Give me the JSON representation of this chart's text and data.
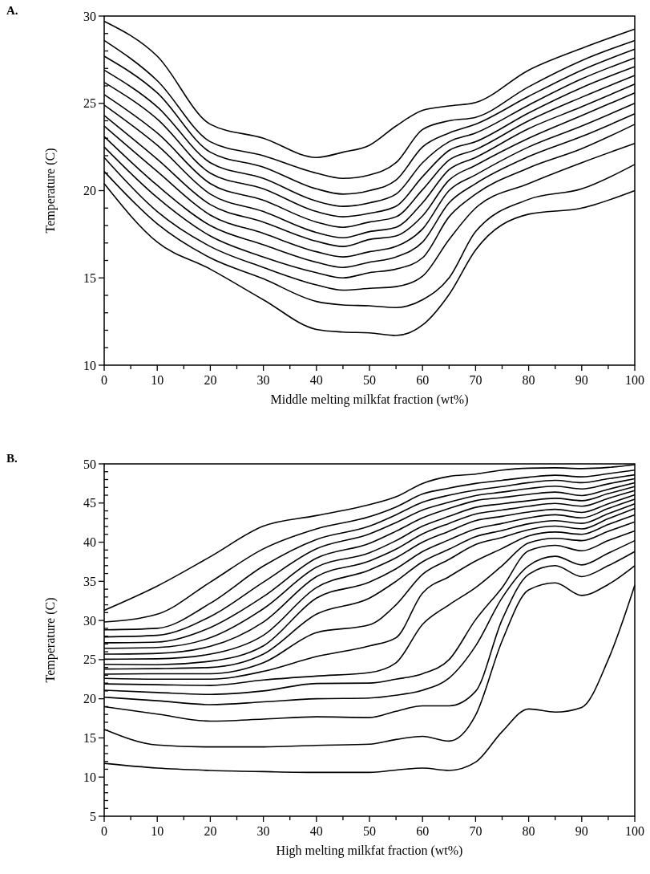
{
  "chart_data": [
    {
      "type": "line",
      "title": "A.",
      "xlabel": "Middle melting milkfat fraction (wt%)",
      "ylabel": "Temperature (C)",
      "xlim": [
        0,
        100
      ],
      "ylim": [
        10,
        30
      ],
      "xticks": [
        0,
        {
          "value": 5,
          "label": null
        },
        10,
        {
          "value": 15,
          "label": null
        },
        20,
        {
          "value": 25,
          "label": null
        },
        30,
        {
          "value": 35,
          "label": null
        },
        40,
        {
          "value": 45,
          "label": null
        },
        50,
        {
          "value": 55,
          "label": null
        },
        60,
        {
          "value": 65,
          "label": null
        },
        70,
        {
          "value": 75,
          "label": null
        },
        80,
        {
          "value": 85,
          "label": null
        },
        90,
        {
          "value": 95,
          "label": null
        },
        100
      ],
      "yticks": [
        10,
        {
          "value": 11,
          "label": null
        },
        {
          "value": 12,
          "label": null
        },
        {
          "value": 13,
          "label": null
        },
        {
          "value": 14,
          "label": null
        },
        15,
        {
          "value": 16,
          "label": null
        },
        {
          "value": 17,
          "label": null
        },
        {
          "value": 18,
          "label": null
        },
        {
          "value": 19,
          "label": null
        },
        20,
        {
          "value": 21,
          "label": null
        },
        {
          "value": 22,
          "label": null
        },
        {
          "value": 23,
          "label": null
        },
        {
          "value": 24,
          "label": null
        },
        25,
        {
          "value": 26,
          "label": null
        },
        {
          "value": 27,
          "label": null
        },
        {
          "value": 28,
          "label": null
        },
        {
          "value": 29,
          "label": null
        },
        30
      ],
      "x": [
        0,
        10,
        20,
        30,
        40,
        45,
        50,
        55,
        60,
        65,
        70,
        80,
        90,
        100
      ],
      "series": [
        {
          "color": "#000000",
          "values": [
            29.7,
            27.7,
            23.8,
            23.0,
            21.9,
            22.2,
            22.6,
            23.7,
            24.6,
            24.85,
            25.05,
            26.9,
            28.15,
            29.25
          ]
        },
        {
          "color": "#000000",
          "values": [
            28.6,
            26.3,
            22.8,
            22.0,
            21.0,
            20.7,
            20.9,
            21.6,
            23.5,
            24.0,
            24.2,
            25.95,
            27.45,
            28.6
          ]
        },
        {
          "color": "#000000",
          "values": [
            27.7,
            25.6,
            22.2,
            21.35,
            20.1,
            19.8,
            20.0,
            20.6,
            22.5,
            23.3,
            23.8,
            25.4,
            26.9,
            28.1
          ]
        },
        {
          "color": "#000000",
          "values": [
            26.9,
            24.8,
            21.6,
            20.7,
            19.4,
            19.1,
            19.3,
            19.8,
            21.6,
            22.8,
            23.3,
            24.9,
            26.4,
            27.6
          ]
        },
        {
          "color": "#000000",
          "values": [
            26.2,
            24.1,
            21.0,
            20.1,
            18.8,
            18.5,
            18.7,
            19.1,
            20.8,
            22.3,
            22.8,
            24.45,
            25.9,
            27.1
          ]
        },
        {
          "color": "#000000",
          "values": [
            25.5,
            23.3,
            20.4,
            19.45,
            18.2,
            17.9,
            18.2,
            18.5,
            20.05,
            21.75,
            22.35,
            24.0,
            25.35,
            26.6
          ]
        },
        {
          "color": "#000000",
          "values": [
            24.9,
            22.6,
            19.8,
            18.8,
            17.6,
            17.3,
            17.65,
            17.9,
            19.3,
            21.2,
            21.9,
            23.55,
            24.8,
            26.1
          ]
        },
        {
          "color": "#000000",
          "values": [
            24.3,
            21.8,
            19.2,
            18.2,
            17.1,
            16.8,
            17.2,
            17.4,
            18.55,
            20.6,
            21.45,
            23.0,
            24.3,
            25.6
          ]
        },
        {
          "color": "#000000",
          "values": [
            23.7,
            21.1,
            18.6,
            17.55,
            16.5,
            16.2,
            16.5,
            16.8,
            17.8,
            20.0,
            20.9,
            22.5,
            23.7,
            25.0
          ]
        },
        {
          "color": "#000000",
          "values": [
            23.1,
            20.3,
            18.0,
            16.9,
            15.9,
            15.6,
            15.9,
            16.2,
            17.05,
            19.3,
            20.4,
            21.95,
            23.1,
            24.4
          ]
        },
        {
          "color": "#000000",
          "values": [
            22.5,
            19.6,
            17.4,
            16.2,
            15.3,
            15.0,
            15.3,
            15.5,
            16.15,
            18.5,
            19.8,
            21.3,
            22.4,
            23.8
          ]
        },
        {
          "color": "#000000",
          "values": [
            21.9,
            18.8,
            16.8,
            15.6,
            14.6,
            14.3,
            14.4,
            14.5,
            15.1,
            17.2,
            19.0,
            20.4,
            21.6,
            22.7
          ]
        },
        {
          "color": "#000000",
          "values": [
            21.1,
            18.1,
            16.15,
            14.95,
            13.65,
            13.45,
            13.4,
            13.3,
            13.75,
            15.0,
            17.65,
            19.5,
            20.1,
            21.5
          ]
        },
        {
          "color": "#000000",
          "values": [
            20.4,
            17.05,
            15.5,
            13.75,
            12.05,
            11.9,
            11.85,
            11.7,
            12.3,
            14.05,
            16.6,
            18.65,
            19.0,
            20.0
          ]
        }
      ]
    },
    {
      "type": "line",
      "title": "B.",
      "xlabel": "High melting milkfat fraction (wt%)",
      "ylabel": "Temperature (C)",
      "xlim": [
        0,
        100
      ],
      "ylim": [
        5,
        50
      ],
      "xticks": [
        0,
        {
          "value": 5,
          "label": null
        },
        10,
        {
          "value": 15,
          "label": null
        },
        20,
        {
          "value": 25,
          "label": null
        },
        30,
        {
          "value": 35,
          "label": null
        },
        40,
        {
          "value": 45,
          "label": null
        },
        50,
        {
          "value": 55,
          "label": null
        },
        60,
        {
          "value": 65,
          "label": null
        },
        70,
        {
          "value": 75,
          "label": null
        },
        80,
        {
          "value": 85,
          "label": null
        },
        90,
        {
          "value": 95,
          "label": null
        },
        100
      ],
      "yticks": [
        5,
        {
          "value": 6,
          "label": null
        },
        {
          "value": 7,
          "label": null
        },
        {
          "value": 8,
          "label": null
        },
        {
          "value": 9,
          "label": null
        },
        10,
        {
          "value": 11,
          "label": null
        },
        {
          "value": 12,
          "label": null
        },
        {
          "value": 13,
          "label": null
        },
        {
          "value": 14,
          "label": null
        },
        15,
        {
          "value": 16,
          "label": null
        },
        {
          "value": 17,
          "label": null
        },
        {
          "value": 18,
          "label": null
        },
        {
          "value": 19,
          "label": null
        },
        20,
        {
          "value": 21,
          "label": null
        },
        {
          "value": 22,
          "label": null
        },
        {
          "value": 23,
          "label": null
        },
        {
          "value": 24,
          "label": null
        },
        25,
        {
          "value": 26,
          "label": null
        },
        {
          "value": 27,
          "label": null
        },
        {
          "value": 28,
          "label": null
        },
        {
          "value": 29,
          "label": null
        },
        30,
        {
          "value": 31,
          "label": null
        },
        {
          "value": 32,
          "label": null
        },
        {
          "value": 33,
          "label": null
        },
        {
          "value": 34,
          "label": null
        },
        35,
        {
          "value": 36,
          "label": null
        },
        {
          "value": 37,
          "label": null
        },
        {
          "value": 38,
          "label": null
        },
        {
          "value": 39,
          "label": null
        },
        40,
        {
          "value": 41,
          "label": null
        },
        {
          "value": 42,
          "label": null
        },
        {
          "value": 43,
          "label": null
        },
        {
          "value": 44,
          "label": null
        },
        45,
        {
          "value": 46,
          "label": null
        },
        {
          "value": 47,
          "label": null
        },
        {
          "value": 48,
          "label": null
        },
        {
          "value": 49,
          "label": null
        },
        50
      ],
      "x": [
        0,
        10,
        20,
        30,
        40,
        50,
        55,
        60,
        65,
        70,
        75,
        80,
        85,
        90,
        95,
        100
      ],
      "series": [
        {
          "color": "#000000",
          "values": [
            31.3,
            34.4,
            38.15,
            42.05,
            43.4,
            44.8,
            45.8,
            47.5,
            48.4,
            48.7,
            49.2,
            49.45,
            49.5,
            49.4,
            49.55,
            49.9
          ]
        },
        {
          "color": "#000000",
          "values": [
            29.8,
            30.8,
            34.9,
            39.15,
            41.7,
            43.25,
            44.5,
            46.15,
            46.9,
            47.5,
            47.9,
            48.3,
            48.55,
            48.35,
            48.75,
            49.2
          ]
        },
        {
          "color": "#000000",
          "values": [
            28.8,
            29.0,
            32.2,
            36.95,
            40.35,
            42.05,
            43.5,
            45.1,
            46.0,
            46.65,
            47.1,
            47.6,
            47.9,
            47.6,
            48.1,
            48.6
          ]
        },
        {
          "color": "#000000",
          "values": [
            27.9,
            28.1,
            30.5,
            34.9,
            39.15,
            41.05,
            42.5,
            44.1,
            45.1,
            45.95,
            46.4,
            46.85,
            47.15,
            46.8,
            47.45,
            48.1
          ]
        },
        {
          "color": "#000000",
          "values": [
            27.15,
            27.25,
            29.1,
            33.05,
            37.95,
            39.85,
            41.4,
            43.1,
            44.3,
            45.3,
            45.7,
            46.1,
            46.4,
            45.95,
            46.75,
            47.6
          ]
        },
        {
          "color": "#000000",
          "values": [
            26.45,
            26.55,
            27.8,
            31.5,
            36.8,
            38.65,
            40.2,
            42.05,
            43.3,
            44.45,
            44.9,
            45.3,
            45.6,
            45.3,
            46.2,
            47.1
          ]
        },
        {
          "color": "#000000",
          "values": [
            25.7,
            25.8,
            26.7,
            29.8,
            35.6,
            37.6,
            39.1,
            41.05,
            42.4,
            43.6,
            44.1,
            44.6,
            44.95,
            44.6,
            45.6,
            46.6
          ]
        },
        {
          "color": "#000000",
          "values": [
            25.05,
            25.1,
            25.7,
            28.1,
            34.2,
            36.45,
            38.0,
            40.0,
            41.4,
            42.75,
            43.3,
            43.85,
            44.2,
            43.8,
            44.9,
            46.05
          ]
        },
        {
          "color": "#000000",
          "values": [
            24.4,
            24.35,
            24.8,
            26.75,
            32.85,
            34.9,
            36.6,
            38.8,
            40.3,
            41.7,
            42.4,
            43.1,
            43.5,
            43.1,
            44.3,
            45.5
          ]
        },
        {
          "color": "#000000",
          "values": [
            23.8,
            23.85,
            24.0,
            25.7,
            30.8,
            32.85,
            35.0,
            37.5,
            39.1,
            40.7,
            41.5,
            42.35,
            42.75,
            42.4,
            43.65,
            44.9
          ]
        },
        {
          "color": "#000000",
          "values": [
            23.15,
            23.2,
            23.2,
            24.6,
            28.45,
            29.45,
            32.0,
            35.9,
            37.8,
            39.7,
            40.6,
            41.6,
            42.05,
            41.7,
            43.0,
            44.3
          ]
        },
        {
          "color": "#000000",
          "values": [
            22.6,
            22.5,
            22.5,
            23.5,
            25.4,
            26.75,
            27.8,
            33.5,
            35.6,
            37.6,
            39.2,
            40.8,
            41.3,
            41.0,
            42.25,
            43.5
          ]
        },
        {
          "color": "#000000",
          "values": [
            21.9,
            21.8,
            21.7,
            22.4,
            22.9,
            23.35,
            24.6,
            29.5,
            32.0,
            34.2,
            37.0,
            39.9,
            40.5,
            40.2,
            41.4,
            42.6
          ]
        },
        {
          "color": "#000000",
          "values": [
            21.1,
            20.8,
            20.55,
            21.0,
            21.95,
            22.0,
            22.5,
            23.2,
            25.0,
            30.1,
            34.2,
            38.9,
            39.6,
            38.9,
            40.2,
            41.45
          ]
        },
        {
          "color": "#000000",
          "values": [
            20.2,
            19.75,
            19.25,
            19.6,
            20.0,
            20.1,
            20.45,
            21.1,
            22.65,
            26.75,
            32.9,
            37.0,
            38.2,
            37.1,
            38.6,
            40.2
          ]
        },
        {
          "color": "#000000",
          "values": [
            19.0,
            18.05,
            17.15,
            17.4,
            17.7,
            17.6,
            18.4,
            19.1,
            19.1,
            20.95,
            30.1,
            35.9,
            37.0,
            35.6,
            37.0,
            38.8
          ]
        },
        {
          "color": "#000000",
          "values": [
            16.1,
            14.1,
            13.85,
            13.85,
            14.05,
            14.2,
            14.8,
            15.2,
            14.6,
            17.9,
            27.4,
            33.9,
            34.8,
            33.2,
            34.6,
            37.0
          ]
        },
        {
          "color": "#000000",
          "values": [
            11.75,
            11.15,
            10.85,
            10.7,
            10.6,
            10.6,
            10.9,
            11.15,
            10.85,
            11.9,
            15.8,
            18.7,
            18.3,
            18.9,
            25.0,
            34.5
          ]
        }
      ]
    }
  ]
}
